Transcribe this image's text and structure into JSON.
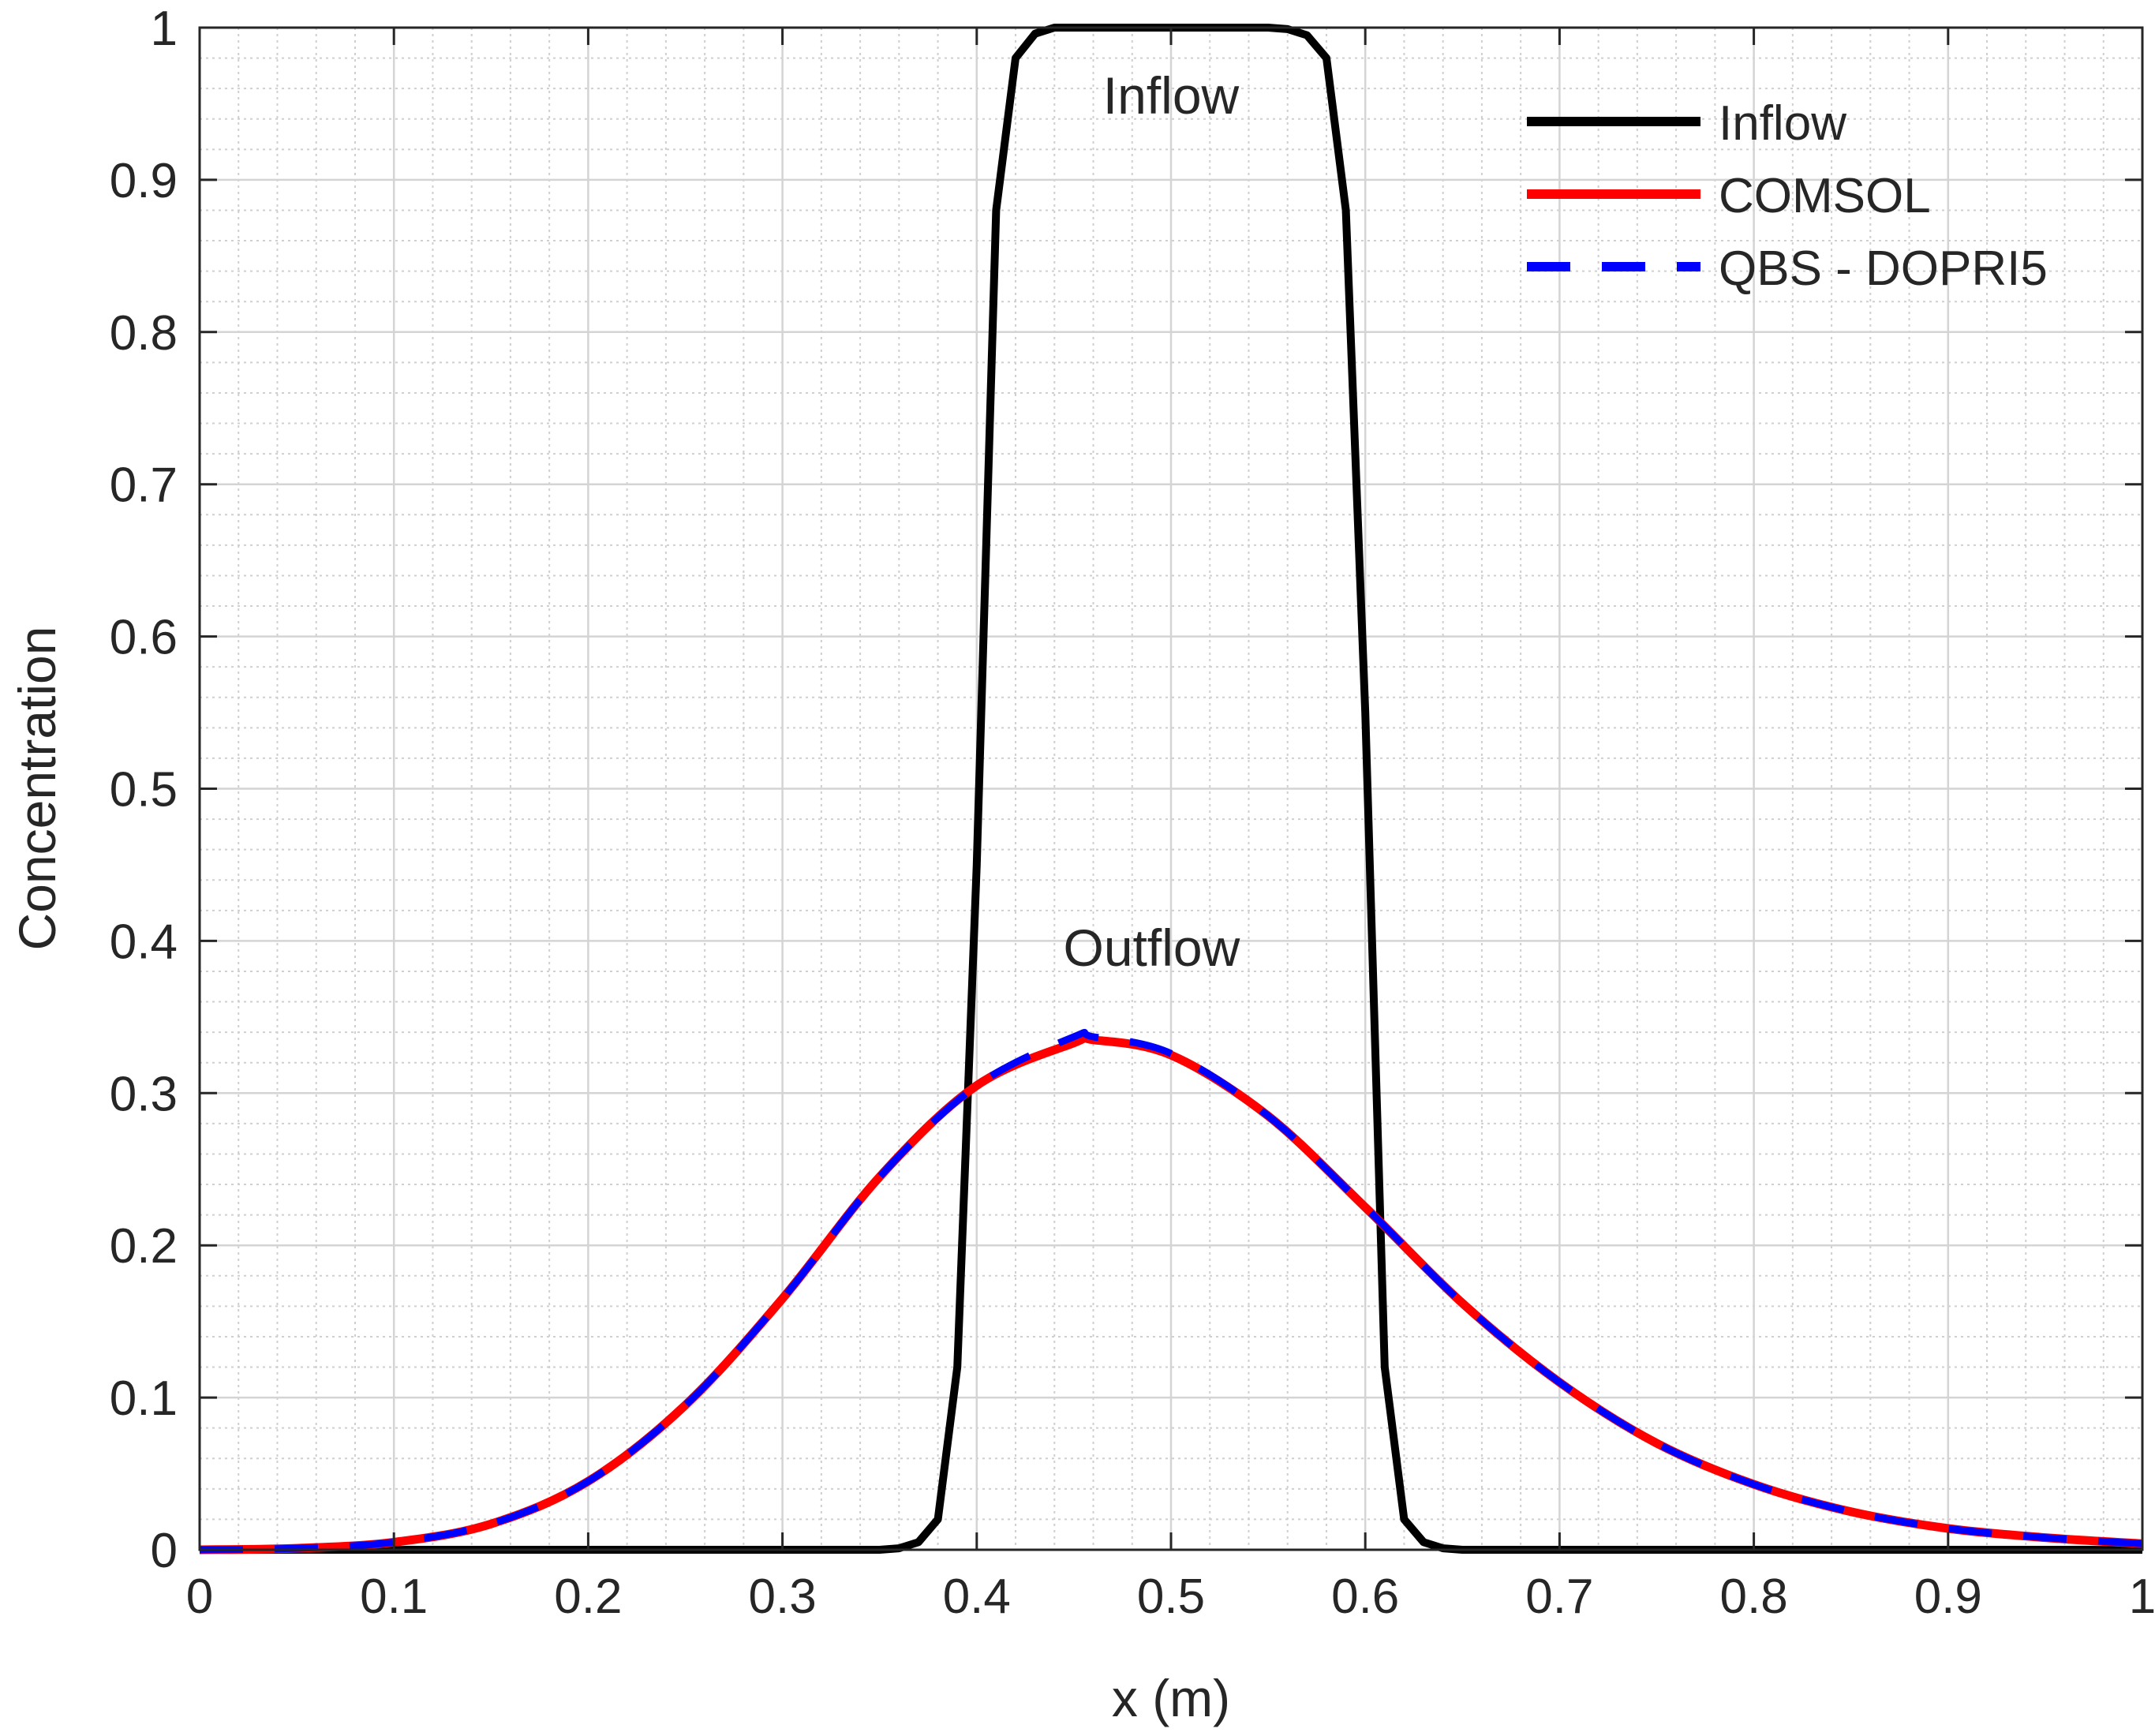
{
  "chart_data": {
    "type": "line",
    "title": "",
    "xlabel": "x (m)",
    "ylabel": "Concentration",
    "xlim": [
      0,
      1
    ],
    "ylim": [
      0,
      1
    ],
    "x_ticks": [
      "0",
      "0.1",
      "0.2",
      "0.3",
      "0.4",
      "0.5",
      "0.6",
      "0.7",
      "0.8",
      "0.9",
      "1"
    ],
    "y_ticks": [
      "0",
      "0.1",
      "0.2",
      "0.3",
      "0.4",
      "0.5",
      "0.6",
      "0.7",
      "0.8",
      "0.9",
      "1"
    ],
    "grid": true,
    "minor_grid": true,
    "legend_position": "top-right",
    "annotations": [
      {
        "text": "Inflow",
        "x": 0.5,
        "y": 0.955
      },
      {
        "text": "Outflow",
        "x": 0.49,
        "y": 0.395
      }
    ],
    "series": [
      {
        "name": "Inflow",
        "color": "#000000",
        "style": "solid",
        "x": [
          0,
          0.35,
          0.36,
          0.37,
          0.38,
          0.39,
          0.4,
          0.41,
          0.42,
          0.43,
          0.44,
          0.45,
          0.5,
          0.55,
          0.56,
          0.57,
          0.58,
          0.59,
          0.6,
          0.61,
          0.62,
          0.63,
          0.64,
          0.65,
          1
        ],
        "y": [
          0,
          0,
          0.001,
          0.005,
          0.02,
          0.12,
          0.45,
          0.88,
          0.98,
          0.996,
          1,
          1,
          1,
          1,
          0.999,
          0.995,
          0.98,
          0.88,
          0.55,
          0.12,
          0.02,
          0.005,
          0.001,
          0,
          0
        ]
      },
      {
        "name": "COMSOL",
        "color": "#ff0000",
        "style": "solid",
        "x": [
          0,
          0.05,
          0.1,
          0.15,
          0.2,
          0.25,
          0.3,
          0.35,
          0.4,
          0.45,
          0.46,
          0.5,
          0.55,
          0.6,
          0.65,
          0.7,
          0.75,
          0.8,
          0.85,
          0.9,
          0.95,
          1
        ],
        "y": [
          0,
          0.001,
          0.005,
          0.017,
          0.045,
          0.095,
          0.165,
          0.245,
          0.305,
          0.333,
          0.335,
          0.325,
          0.285,
          0.225,
          0.162,
          0.11,
          0.07,
          0.043,
          0.025,
          0.014,
          0.008,
          0.004
        ]
      },
      {
        "name": "QBS - DOPRI5",
        "color": "#0000ff",
        "style": "dashed",
        "x": [
          0,
          0.05,
          0.1,
          0.15,
          0.2,
          0.25,
          0.3,
          0.35,
          0.4,
          0.45,
          0.46,
          0.5,
          0.55,
          0.6,
          0.65,
          0.7,
          0.75,
          0.8,
          0.85,
          0.9,
          0.95,
          1
        ],
        "y": [
          0,
          0.001,
          0.005,
          0.017,
          0.045,
          0.095,
          0.165,
          0.245,
          0.305,
          0.337,
          0.337,
          0.326,
          0.285,
          0.225,
          0.162,
          0.11,
          0.07,
          0.043,
          0.025,
          0.014,
          0.008,
          0.004
        ]
      }
    ]
  }
}
